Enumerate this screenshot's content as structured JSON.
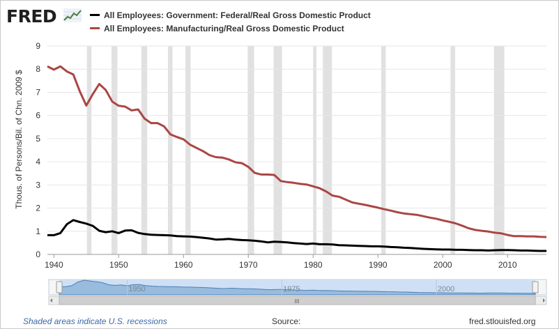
{
  "header": {
    "logo_text": "FRED",
    "logo_icon": "trend-line-icon",
    "legend": [
      {
        "label": "All Employees: Government: Federal/Real Gross Domestic Product",
        "color": "#000000"
      },
      {
        "label": "All Employees: Manufacturing/Real Gross Domestic Product",
        "color": "#aa4643"
      }
    ]
  },
  "chart_data": {
    "type": "line",
    "title": "",
    "xlabel": "",
    "ylabel": "Thous. of Persons/Bil. of Chn. 2009 $",
    "xlim": [
      1939,
      2016
    ],
    "ylim": [
      0,
      9
    ],
    "x_ticks": [
      "1940",
      "1950",
      "1960",
      "1970",
      "1980",
      "1990",
      "2000",
      "2010"
    ],
    "y_ticks": [
      "0",
      "1",
      "2",
      "3",
      "4",
      "5",
      "6",
      "7",
      "8",
      "9"
    ],
    "grid": true,
    "recessions": [
      [
        1945.1,
        1945.8
      ],
      [
        1948.9,
        1949.8
      ],
      [
        1953.5,
        1954.4
      ],
      [
        1957.6,
        1958.3
      ],
      [
        1960.3,
        1961.1
      ],
      [
        1969.9,
        1970.9
      ],
      [
        1973.9,
        1975.2
      ],
      [
        1980.0,
        1980.5
      ],
      [
        1981.5,
        1982.9
      ],
      [
        1990.5,
        1991.2
      ],
      [
        2001.2,
        2001.9
      ],
      [
        2007.9,
        2009.5
      ]
    ],
    "series": [
      {
        "name": "All Employees: Government: Federal/Real Gross Domestic Product",
        "color": "#000000",
        "x": [
          1939,
          1940,
          1941,
          1942,
          1943,
          1944,
          1945,
          1946,
          1947,
          1948,
          1949,
          1950,
          1951,
          1952,
          1953,
          1954,
          1955,
          1956,
          1957,
          1958,
          1959,
          1960,
          1961,
          1962,
          1963,
          1964,
          1965,
          1966,
          1967,
          1968,
          1969,
          1970,
          1971,
          1972,
          1973,
          1974,
          1975,
          1976,
          1977,
          1978,
          1979,
          1980,
          1981,
          1982,
          1983,
          1984,
          1985,
          1986,
          1987,
          1988,
          1989,
          1990,
          1991,
          1992,
          1993,
          1994,
          1995,
          1996,
          1997,
          1998,
          1999,
          2000,
          2001,
          2002,
          2003,
          2004,
          2005,
          2006,
          2007,
          2008,
          2009,
          2010,
          2011,
          2012,
          2013,
          2014,
          2015,
          2016
        ],
        "values": [
          0.83,
          0.83,
          0.92,
          1.3,
          1.48,
          1.4,
          1.33,
          1.23,
          1.02,
          0.96,
          1.0,
          0.92,
          1.03,
          1.04,
          0.93,
          0.88,
          0.85,
          0.84,
          0.83,
          0.82,
          0.79,
          0.78,
          0.77,
          0.75,
          0.72,
          0.69,
          0.64,
          0.65,
          0.67,
          0.64,
          0.62,
          0.61,
          0.59,
          0.56,
          0.52,
          0.55,
          0.54,
          0.52,
          0.49,
          0.47,
          0.45,
          0.47,
          0.44,
          0.44,
          0.43,
          0.4,
          0.39,
          0.38,
          0.37,
          0.36,
          0.35,
          0.35,
          0.34,
          0.32,
          0.31,
          0.29,
          0.28,
          0.26,
          0.24,
          0.23,
          0.22,
          0.21,
          0.21,
          0.2,
          0.2,
          0.19,
          0.18,
          0.18,
          0.17,
          0.18,
          0.19,
          0.19,
          0.18,
          0.17,
          0.17,
          0.16,
          0.15,
          0.15
        ]
      },
      {
        "name": "All Employees: Manufacturing/Real Gross Domestic Product",
        "color": "#aa4643",
        "x": [
          1939,
          1940,
          1941,
          1942,
          1943,
          1944,
          1945,
          1946,
          1947,
          1948,
          1949,
          1950,
          1951,
          1952,
          1953,
          1954,
          1955,
          1956,
          1957,
          1958,
          1959,
          1960,
          1961,
          1962,
          1963,
          1964,
          1965,
          1966,
          1967,
          1968,
          1969,
          1970,
          1971,
          1972,
          1973,
          1974,
          1975,
          1976,
          1977,
          1978,
          1979,
          1980,
          1981,
          1982,
          1983,
          1984,
          1985,
          1986,
          1987,
          1988,
          1989,
          1990,
          1991,
          1992,
          1993,
          1994,
          1995,
          1996,
          1997,
          1998,
          1999,
          2000,
          2001,
          2002,
          2003,
          2004,
          2005,
          2006,
          2007,
          2008,
          2009,
          2010,
          2011,
          2012,
          2013,
          2014,
          2015,
          2016
        ],
        "values": [
          8.12,
          7.98,
          8.12,
          7.9,
          7.77,
          7.04,
          6.43,
          6.92,
          7.36,
          7.1,
          6.6,
          6.42,
          6.38,
          6.22,
          6.26,
          5.86,
          5.67,
          5.67,
          5.53,
          5.18,
          5.07,
          4.97,
          4.74,
          4.6,
          4.46,
          4.29,
          4.2,
          4.18,
          4.1,
          3.98,
          3.94,
          3.78,
          3.52,
          3.45,
          3.45,
          3.43,
          3.17,
          3.12,
          3.09,
          3.05,
          3.02,
          2.94,
          2.86,
          2.72,
          2.54,
          2.49,
          2.37,
          2.25,
          2.19,
          2.14,
          2.08,
          2.02,
          1.95,
          1.89,
          1.82,
          1.77,
          1.74,
          1.71,
          1.65,
          1.59,
          1.54,
          1.47,
          1.41,
          1.34,
          1.24,
          1.13,
          1.06,
          1.02,
          0.99,
          0.94,
          0.91,
          0.84,
          0.79,
          0.79,
          0.78,
          0.78,
          0.76,
          0.75
        ]
      }
    ]
  },
  "navigator": {
    "ticks": [
      "1950",
      "1975",
      "2000"
    ],
    "handle_glyph": "III",
    "selection": [
      0,
      1
    ]
  },
  "footer": {
    "note": "Shaded areas indicate U.S. recessions",
    "source_label": "Source:",
    "site": "fred.stlouisfed.org"
  }
}
